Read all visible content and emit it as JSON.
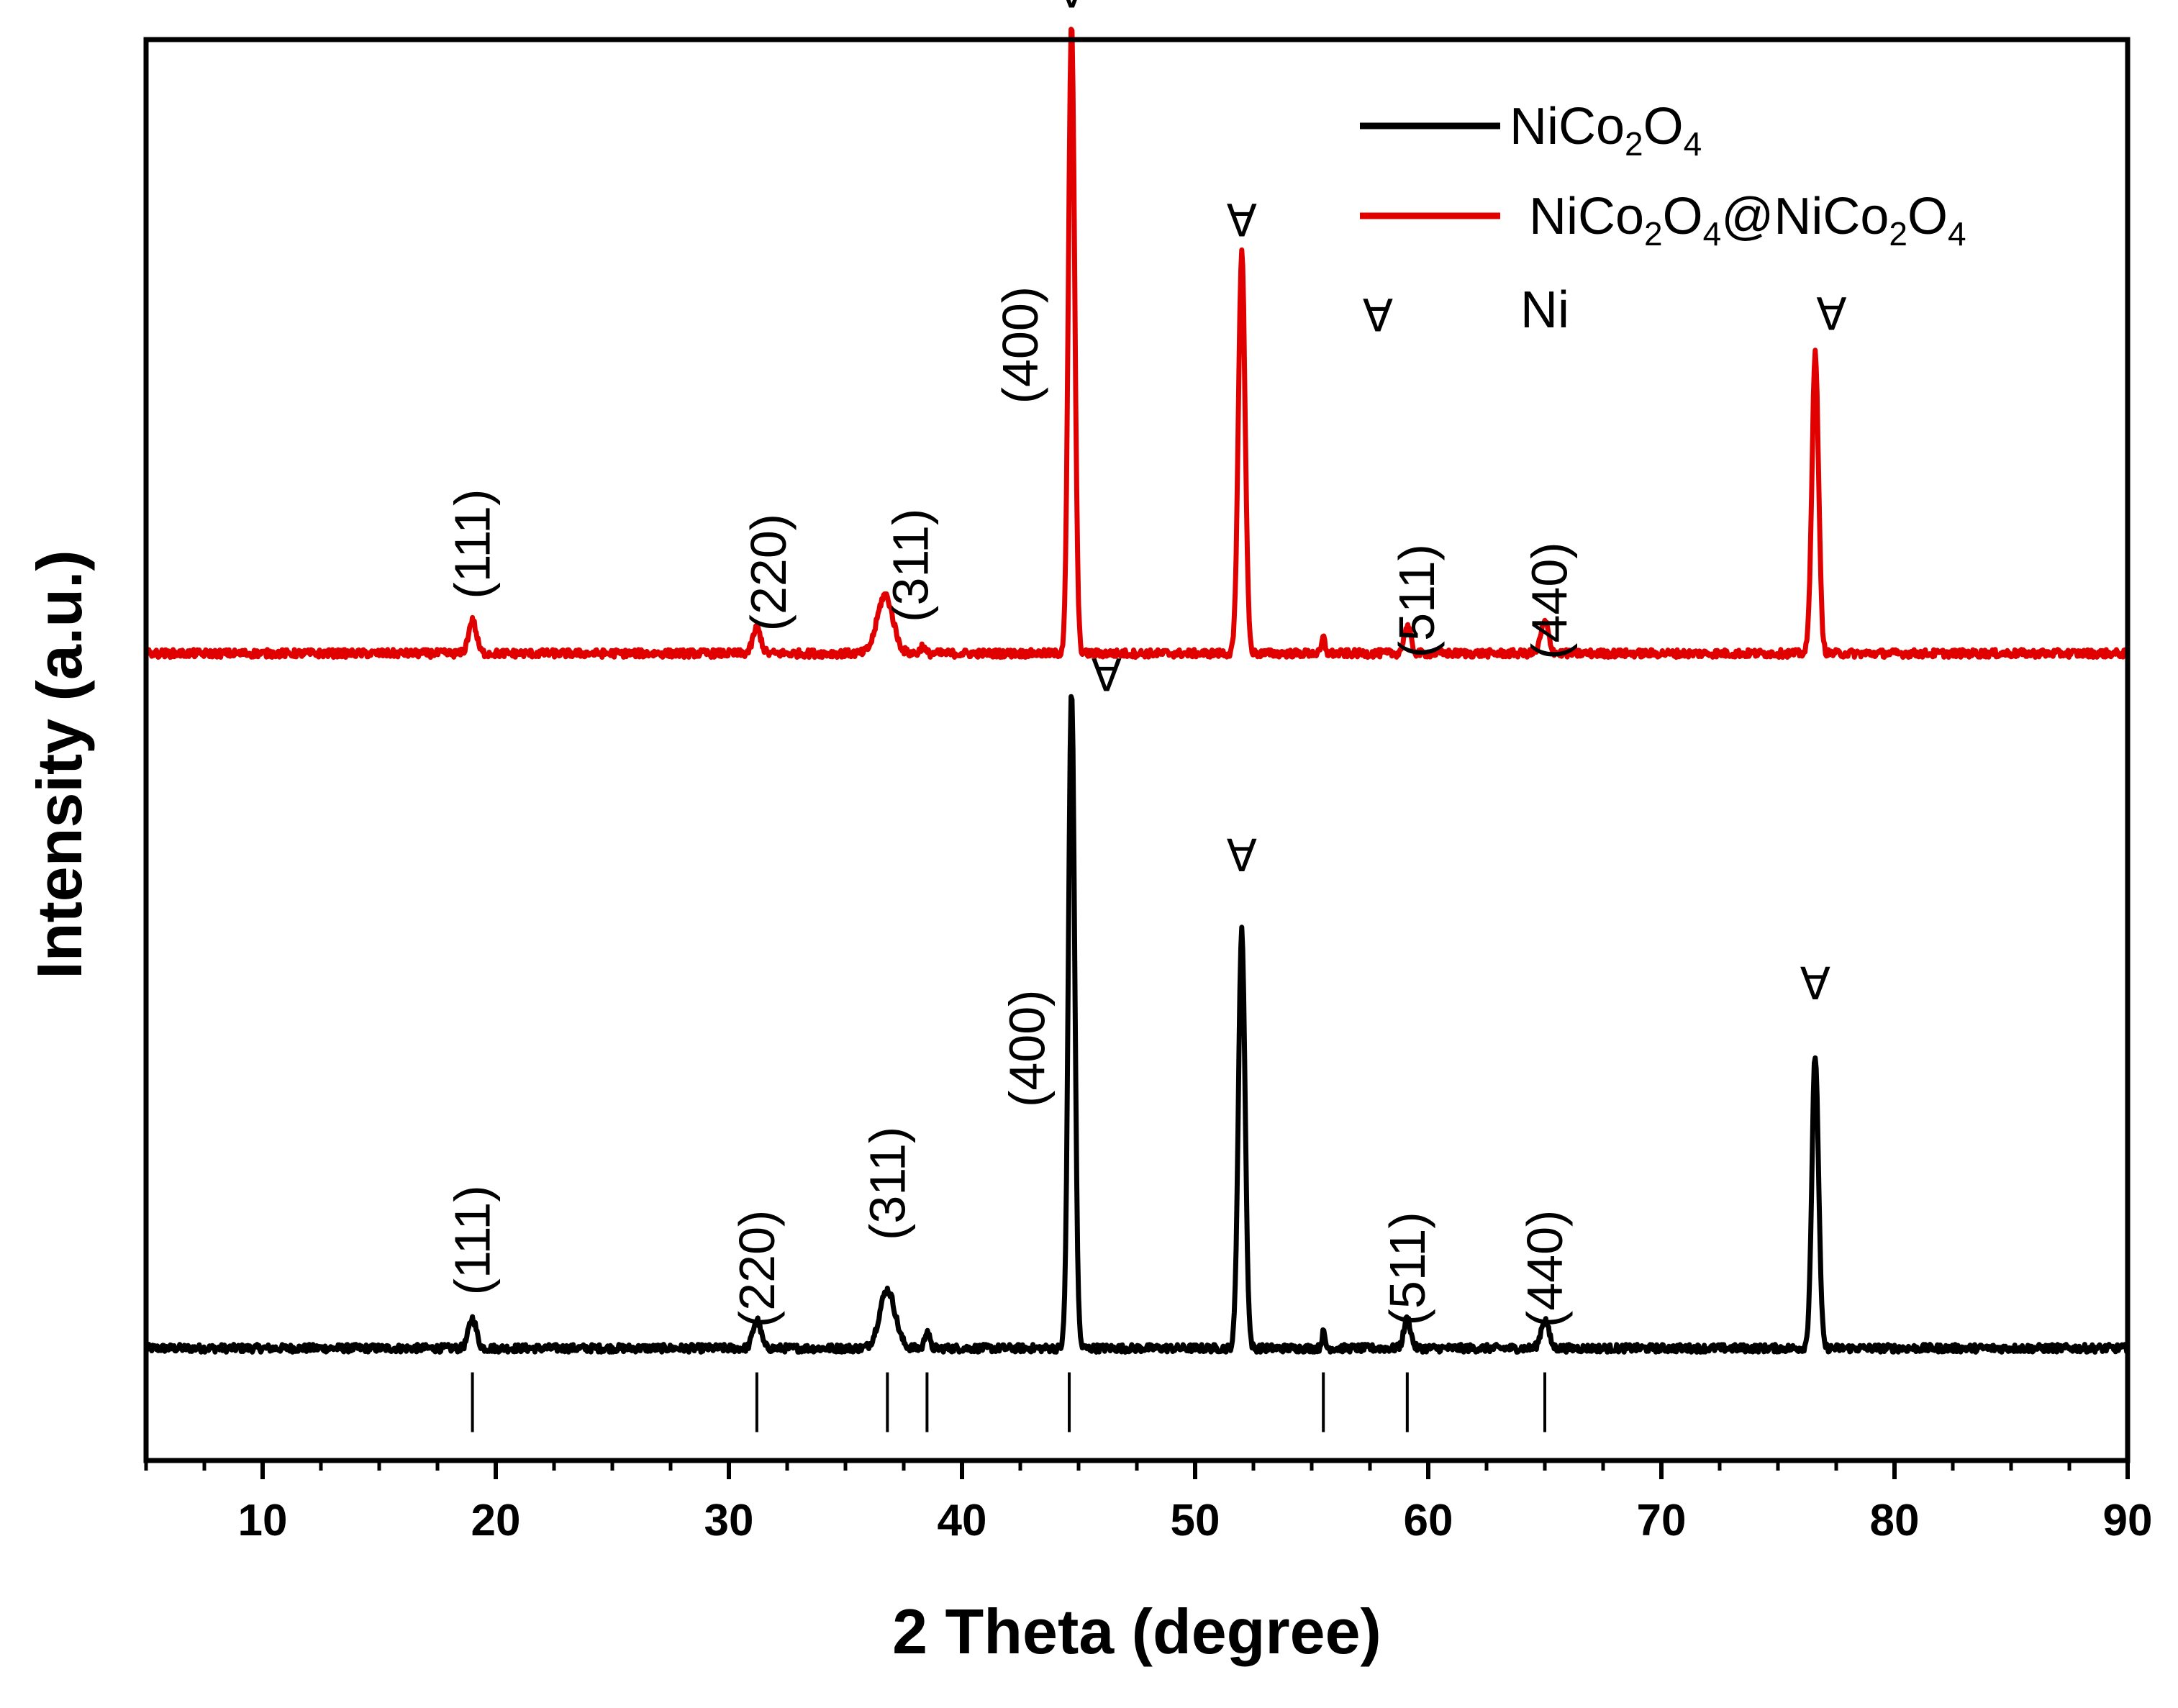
{
  "chart_data": {
    "type": "line",
    "xlabel": "2 Theta (degree)",
    "ylabel": "Intensity (a.u.)",
    "xlim": [
      5,
      90
    ],
    "ylim": [
      0,
      100
    ],
    "xticks": [
      10,
      20,
      30,
      40,
      50,
      60,
      70,
      80,
      90
    ],
    "x_minor_step": 2.5,
    "y_ticks": "none",
    "grid": false,
    "legend_position": "top-right",
    "legend": [
      {
        "series": 0,
        "parts": [
          {
            "t": "NiCo"
          },
          {
            "t": "2",
            "sub": true
          },
          {
            "t": "O"
          },
          {
            "t": "4",
            "sub": true
          }
        ]
      },
      {
        "series": 1,
        "parts": [
          {
            "t": "NiCo"
          },
          {
            "t": "2",
            "sub": true
          },
          {
            "t": "O"
          },
          {
            "t": "4",
            "sub": true
          },
          {
            "t": "@NiCo"
          },
          {
            "t": "2",
            "sub": true
          },
          {
            "t": "O"
          },
          {
            "t": "4",
            "sub": true
          }
        ]
      }
    ],
    "legend_marker_label": "Ni",
    "marker_symbol": "∀",
    "series": [
      {
        "color": "#000000",
        "baseline": 7.9,
        "peaks": [
          {
            "x": 19.0,
            "h": 2.1,
            "w": 0.35
          },
          {
            "x": 31.2,
            "h": 2.0,
            "w": 0.35
          },
          {
            "x": 36.8,
            "h": 4.1,
            "w": 0.7
          },
          {
            "x": 38.5,
            "h": 1.3,
            "w": 0.2
          },
          {
            "x": 44.7,
            "h": 46.4,
            "w": 0.28
          },
          {
            "x": 52.0,
            "h": 29.4,
            "w": 0.3
          },
          {
            "x": 55.5,
            "h": 1.1,
            "w": 0.15
          },
          {
            "x": 59.1,
            "h": 2.1,
            "w": 0.3
          },
          {
            "x": 65.0,
            "h": 2.0,
            "w": 0.35
          },
          {
            "x": 76.6,
            "h": 20.6,
            "w": 0.3
          }
        ],
        "peak_labels": [
          {
            "x": 19.0,
            "y": 15.5,
            "text": "(111)"
          },
          {
            "x": 31.2,
            "y": 13.5,
            "text": "(220)"
          },
          {
            "x": 36.8,
            "y": 19.5,
            "text": "(311)"
          },
          {
            "x": 42.8,
            "y": 29.0,
            "text": "(400)"
          },
          {
            "x": 59.1,
            "y": 13.5,
            "text": "(511)"
          },
          {
            "x": 65.0,
            "y": 13.5,
            "text": "(440)"
          }
        ],
        "markers": [
          {
            "x": 46.2,
            "y": 55.2
          },
          {
            "x": 52.0,
            "y": 42.5
          },
          {
            "x": 76.6,
            "y": 33.5
          }
        ]
      },
      {
        "color": "#e00000",
        "baseline": 56.8,
        "peaks": [
          {
            "x": 19.0,
            "h": 2.3,
            "w": 0.35
          },
          {
            "x": 31.2,
            "h": 1.8,
            "w": 0.35
          },
          {
            "x": 36.7,
            "h": 4.1,
            "w": 0.7
          },
          {
            "x": 38.3,
            "h": 0.5,
            "w": 0.2
          },
          {
            "x": 44.7,
            "h": 44.2,
            "w": 0.28
          },
          {
            "x": 52.0,
            "h": 28.3,
            "w": 0.3
          },
          {
            "x": 55.5,
            "h": 1.1,
            "w": 0.15
          },
          {
            "x": 59.1,
            "h": 1.9,
            "w": 0.3
          },
          {
            "x": 65.0,
            "h": 2.2,
            "w": 0.35
          },
          {
            "x": 76.6,
            "h": 21.1,
            "w": 0.3
          }
        ],
        "peak_labels": [
          {
            "x": 19.0,
            "y": 64.5,
            "text": "(111)"
          },
          {
            "x": 31.7,
            "y": 62.5,
            "text": "(220)"
          },
          {
            "x": 37.8,
            "y": 63.0,
            "text": "(311)"
          },
          {
            "x": 42.5,
            "y": 78.5,
            "text": "(400)"
          },
          {
            "x": 59.5,
            "y": 60.5,
            "text": "(511)"
          },
          {
            "x": 65.2,
            "y": 60.5,
            "text": "(440)"
          }
        ],
        "markers": [
          {
            "x": 44.7,
            "y": 103.3
          },
          {
            "x": 52.0,
            "y": 87.2
          },
          {
            "x": 77.3,
            "y": 80.6
          }
        ]
      }
    ],
    "reference_lines": {
      "x": [
        19.0,
        31.2,
        36.8,
        38.5,
        44.6,
        55.5,
        59.1,
        65.0
      ],
      "y_top": 6.2,
      "y_bottom": 2.0
    }
  }
}
